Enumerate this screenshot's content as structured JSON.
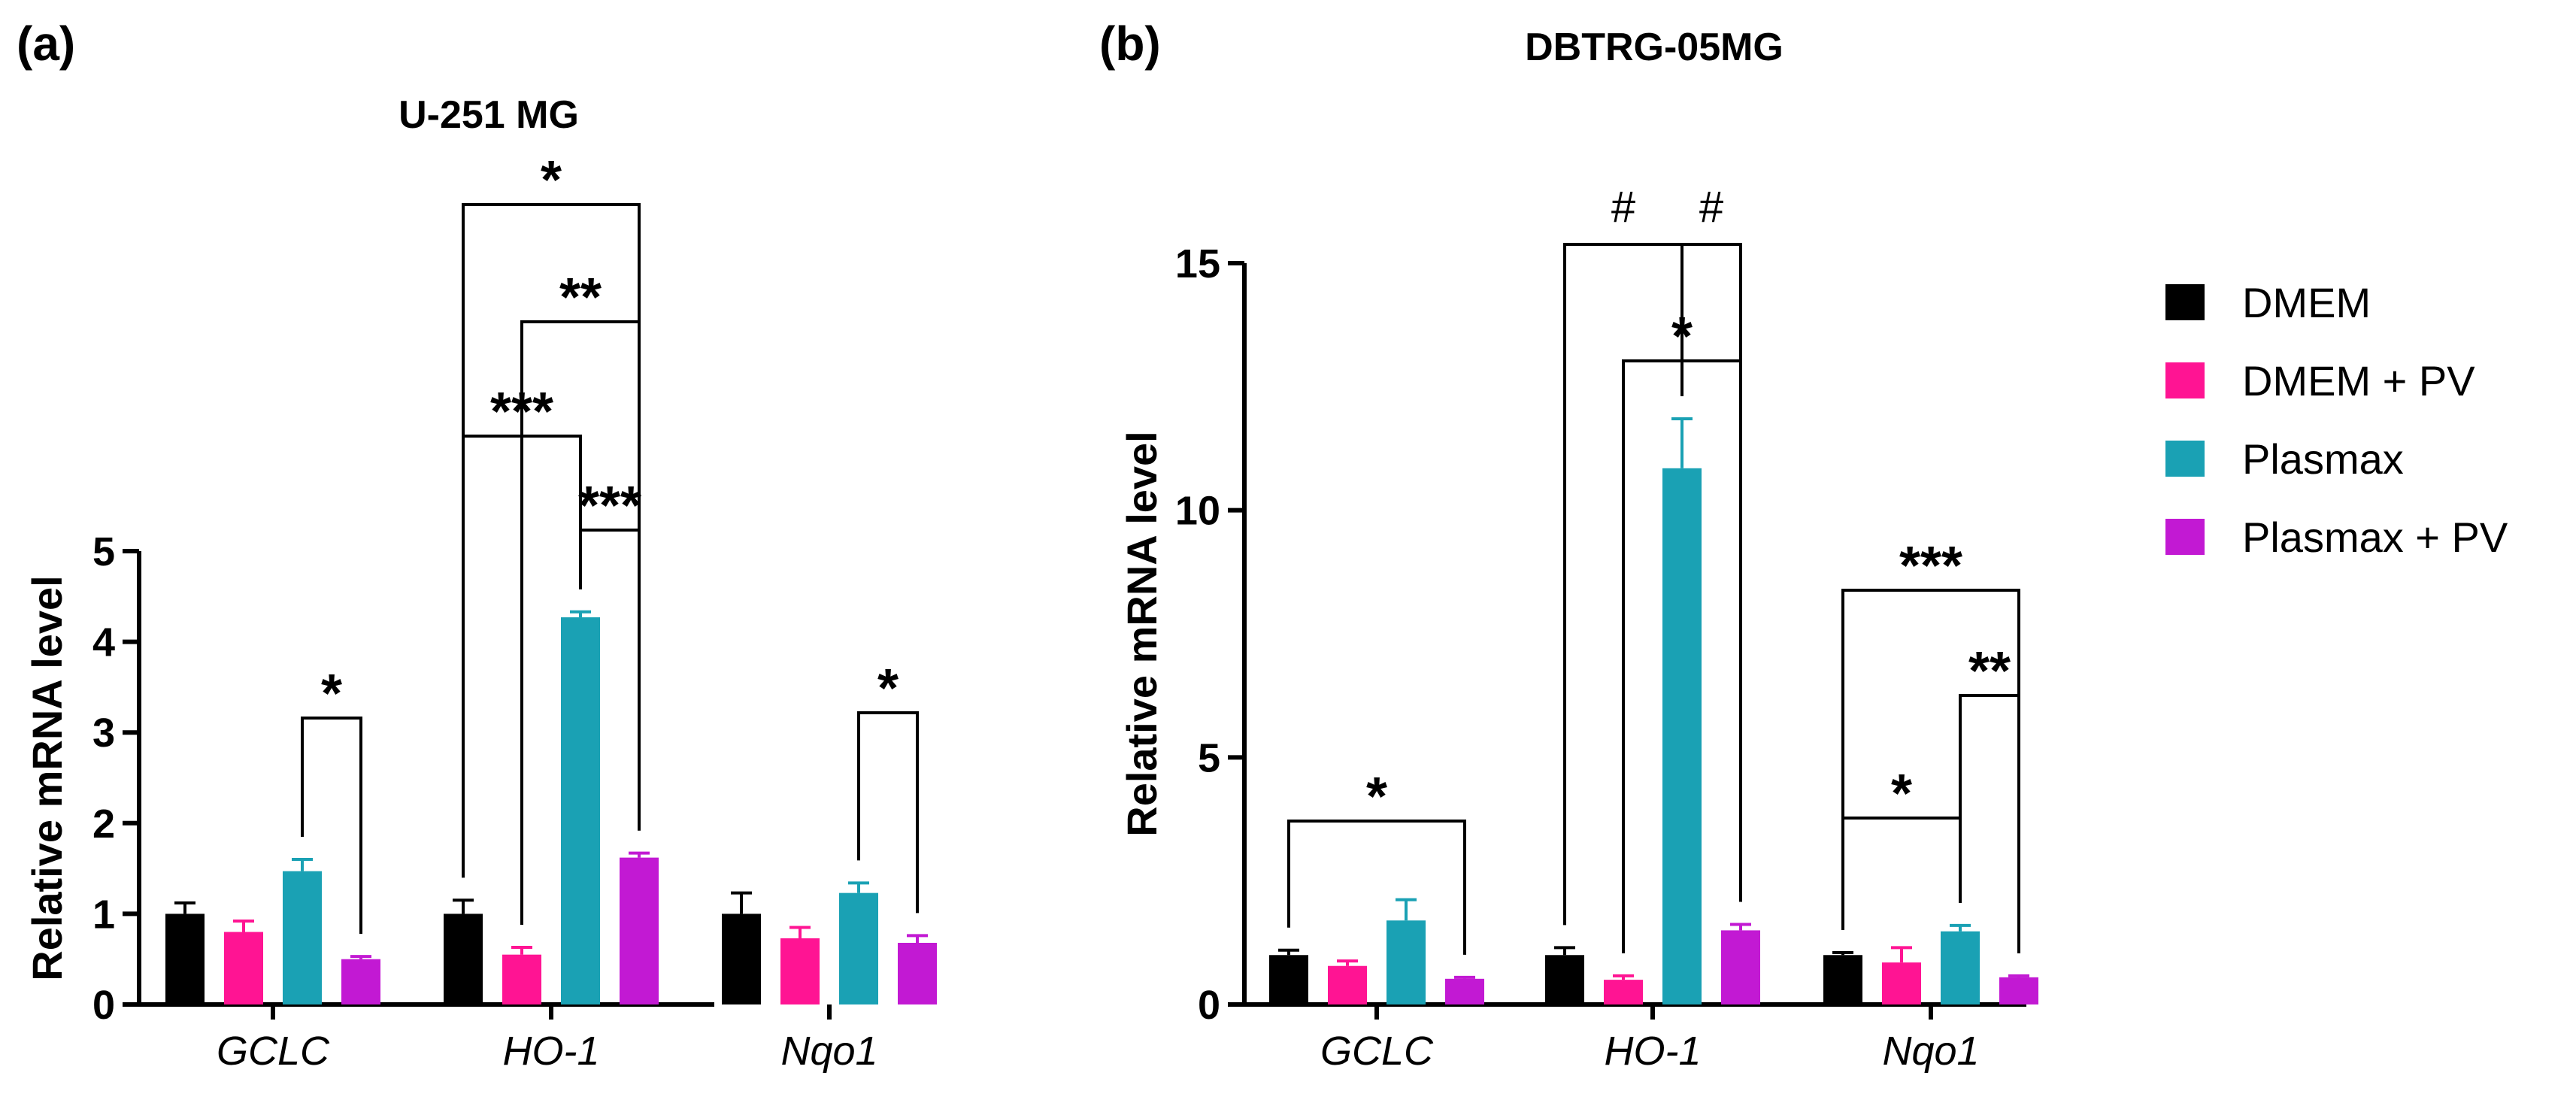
{
  "panels": [
    {
      "label": "(a)"
    },
    {
      "label": "(b)"
    }
  ],
  "legend": {
    "entries": [
      {
        "name": "DMEM",
        "color": "#000000"
      },
      {
        "name": "DMEM + PV",
        "color": "#ff1493"
      },
      {
        "name": "Plasmax",
        "color": "#1aa1b4"
      },
      {
        "name": "Plasmax + PV",
        "color": "#c219d3"
      }
    ]
  },
  "chart_data": [
    {
      "type": "bar",
      "title": "U-251 MG",
      "ylabel": "Relative mRNA level",
      "xlabel": "",
      "ylim": [
        0,
        5
      ],
      "yticks": [
        0,
        1,
        2,
        3,
        4,
        5
      ],
      "categories": [
        "GCLC",
        "HO-1",
        "Nqo1"
      ],
      "series": [
        {
          "name": "DMEM",
          "values": [
            1.0,
            1.0,
            1.0
          ],
          "errors": [
            0.12,
            0.15,
            0.23
          ]
        },
        {
          "name": "DMEM + PV",
          "values": [
            0.8,
            0.55,
            0.73
          ],
          "errors": [
            0.12,
            0.08,
            0.12
          ]
        },
        {
          "name": "Plasmax",
          "values": [
            1.47,
            4.27,
            1.23
          ],
          "errors": [
            0.13,
            0.06,
            0.11
          ]
        },
        {
          "name": "Plasmax + PV",
          "values": [
            0.5,
            1.62,
            0.68
          ],
          "errors": [
            0.03,
            0.05,
            0.08
          ]
        }
      ],
      "significance": [
        {
          "category": "GCLC",
          "from": "Plasmax",
          "to": "Plasmax + PV",
          "label": "*"
        },
        {
          "category": "HO-1",
          "from": "Plasmax",
          "to": "Plasmax + PV",
          "label": "***"
        },
        {
          "category": "HO-1",
          "from": "DMEM",
          "to": "Plasmax",
          "label": "***"
        },
        {
          "category": "HO-1",
          "from": "DMEM + PV",
          "to": "Plasmax + PV",
          "label": "**"
        },
        {
          "category": "HO-1",
          "from": "DMEM",
          "to": "Plasmax + PV",
          "label": "*"
        },
        {
          "category": "Nqo1",
          "from": "Plasmax",
          "to": "Plasmax + PV",
          "label": "*"
        }
      ]
    },
    {
      "type": "bar",
      "title": "DBTRG-05MG",
      "ylabel": "Relative mRNA level",
      "xlabel": "",
      "ylim": [
        0,
        15
      ],
      "yticks": [
        0,
        5,
        10,
        15
      ],
      "categories": [
        "GCLC",
        "HO-1",
        "Nqo1"
      ],
      "series": [
        {
          "name": "DMEM",
          "values": [
            1.0,
            1.0,
            1.0
          ],
          "errors": [
            0.1,
            0.15,
            0.05
          ]
        },
        {
          "name": "DMEM + PV",
          "values": [
            0.78,
            0.5,
            0.85
          ],
          "errors": [
            0.1,
            0.08,
            0.3
          ]
        },
        {
          "name": "Plasmax",
          "values": [
            1.7,
            10.85,
            1.48
          ],
          "errors": [
            0.42,
            1.0,
            0.12
          ]
        },
        {
          "name": "Plasmax + PV",
          "values": [
            0.52,
            1.5,
            0.55
          ],
          "errors": [
            0.03,
            0.12,
            0.03
          ]
        }
      ],
      "significance": [
        {
          "category": "GCLC",
          "from": "DMEM",
          "to": "Plasmax + PV",
          "label": "*"
        },
        {
          "category": "HO-1",
          "from": "DMEM",
          "to": "Plasmax",
          "label": "#"
        },
        {
          "category": "HO-1",
          "from": "Plasmax",
          "to": "Plasmax + PV",
          "label": "#"
        },
        {
          "category": "HO-1",
          "from": "DMEM + PV",
          "to": "Plasmax + PV",
          "label": "*"
        },
        {
          "category": "Nqo1",
          "from": "DMEM",
          "to": "Plasmax + PV",
          "label": "***"
        },
        {
          "category": "Nqo1",
          "from": "Plasmax",
          "to": "Plasmax + PV",
          "label": "**"
        },
        {
          "category": "Nqo1",
          "from": "DMEM",
          "to": "Plasmax",
          "label": "*"
        }
      ]
    }
  ]
}
